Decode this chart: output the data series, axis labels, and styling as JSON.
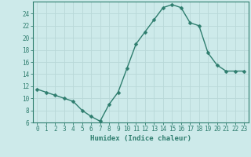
{
  "x": [
    0,
    1,
    2,
    3,
    4,
    5,
    6,
    7,
    8,
    9,
    10,
    11,
    12,
    13,
    14,
    15,
    16,
    17,
    18,
    19,
    20,
    21,
    22,
    23
  ],
  "y": [
    11.5,
    11.0,
    10.5,
    10.0,
    9.5,
    8.0,
    7.0,
    6.2,
    9.0,
    11.0,
    15.0,
    19.0,
    21.0,
    23.0,
    25.0,
    25.5,
    25.0,
    22.5,
    22.0,
    17.5,
    15.5,
    14.5,
    14.5,
    14.5
  ],
  "line_color": "#2e7d6e",
  "marker": "D",
  "marker_size": 2.5,
  "bg_color": "#cdeaea",
  "grid_color": "#b8d8d8",
  "xlabel": "Humidex (Indice chaleur)",
  "xlim": [
    -0.5,
    23.5
  ],
  "ylim": [
    6,
    26
  ],
  "yticks": [
    6,
    8,
    10,
    12,
    14,
    16,
    18,
    20,
    22,
    24
  ],
  "xticks": [
    0,
    1,
    2,
    3,
    4,
    5,
    6,
    7,
    8,
    9,
    10,
    11,
    12,
    13,
    14,
    15,
    16,
    17,
    18,
    19,
    20,
    21,
    22,
    23
  ],
  "tick_color": "#2e7d6e",
  "axis_color": "#2e7d6e",
  "label_fontsize": 6.5,
  "tick_fontsize": 5.5,
  "linewidth": 1.0
}
